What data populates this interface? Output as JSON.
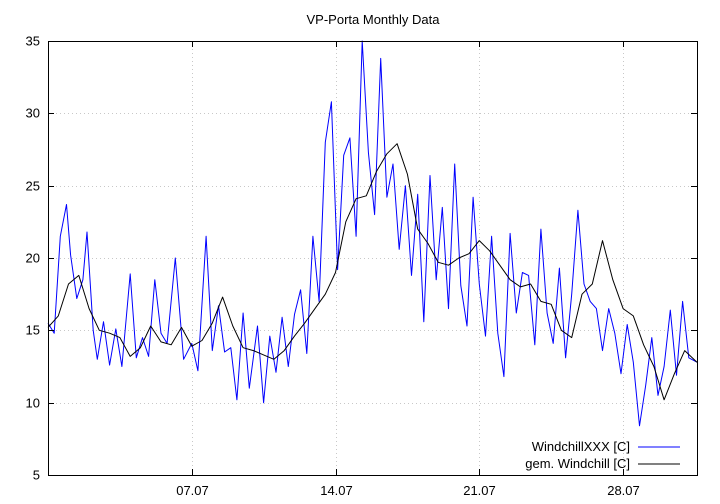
{
  "chart_data": {
    "type": "line",
    "title": "VP-Porta Monthly Data",
    "xlabel": "",
    "ylabel": "",
    "xlim": [
      0,
      31.6
    ],
    "ylim": [
      5,
      35
    ],
    "yticks": [
      5,
      10,
      15,
      20,
      25,
      30,
      35
    ],
    "xticks": [
      {
        "value": 7,
        "label": "07.07"
      },
      {
        "value": 14,
        "label": "14.07"
      },
      {
        "value": 21,
        "label": "21.07"
      },
      {
        "value": 28,
        "label": "28.07"
      }
    ],
    "grid": true,
    "legend_position": "bottom-right",
    "series": [
      {
        "name": "WindchillXXX [C]",
        "color": "#0000ff",
        "x": [
          0.0,
          0.3,
          0.6,
          0.9,
          1.1,
          1.4,
          1.7,
          1.9,
          2.2,
          2.4,
          2.7,
          3.0,
          3.3,
          3.6,
          4.0,
          4.3,
          4.6,
          4.9,
          5.2,
          5.5,
          5.8,
          6.2,
          6.6,
          7.0,
          7.3,
          7.7,
          8.0,
          8.3,
          8.6,
          8.9,
          9.2,
          9.5,
          9.8,
          10.2,
          10.5,
          10.8,
          11.1,
          11.4,
          11.7,
          12.0,
          12.3,
          12.6,
          12.9,
          13.2,
          13.5,
          13.8,
          14.1,
          14.4,
          14.7,
          15.0,
          15.3,
          15.6,
          15.9,
          16.2,
          16.5,
          16.8,
          17.1,
          17.4,
          17.7,
          18.0,
          18.3,
          18.6,
          18.9,
          19.2,
          19.5,
          19.8,
          20.1,
          20.4,
          20.7,
          21.0,
          21.3,
          21.6,
          21.9,
          22.2,
          22.5,
          22.8,
          23.1,
          23.4,
          23.7,
          24.0,
          24.3,
          24.6,
          24.9,
          25.2,
          25.5,
          25.8,
          26.1,
          26.4,
          26.7,
          27.0,
          27.3,
          27.6,
          27.9,
          28.2,
          28.5,
          28.8,
          29.1,
          29.4,
          29.7,
          30.0,
          30.3,
          30.6,
          30.9,
          31.2,
          31.6
        ],
        "y": [
          15.5,
          14.8,
          21.5,
          23.7,
          20.2,
          17.2,
          18.5,
          21.8,
          15.0,
          13.0,
          15.6,
          12.6,
          15.1,
          12.5,
          18.9,
          13.1,
          14.5,
          13.2,
          18.5,
          14.8,
          14.1,
          20.0,
          13.0,
          14.1,
          12.2,
          21.5,
          13.6,
          16.7,
          13.5,
          13.8,
          10.2,
          16.2,
          11.0,
          15.3,
          10.0,
          14.6,
          12.1,
          15.9,
          12.5,
          16.1,
          17.8,
          13.4,
          21.5,
          17.0,
          28.0,
          30.8,
          19.2,
          27.1,
          28.3,
          21.5,
          35.0,
          27.3,
          23.0,
          33.8,
          24.2,
          26.5,
          20.6,
          25.0,
          18.8,
          24.4,
          15.6,
          25.7,
          18.5,
          23.5,
          16.5,
          26.5,
          18.1,
          15.3,
          24.2,
          18.2,
          14.6,
          21.5,
          14.8,
          11.8,
          21.7,
          16.2,
          19.0,
          18.8,
          14.0,
          22.0,
          16.2,
          14.1,
          19.3,
          13.1,
          17.5,
          23.3,
          18.2,
          17.0,
          16.5,
          13.6,
          16.5,
          14.8,
          12.0,
          15.4,
          12.8,
          8.4,
          11.2,
          14.5,
          10.5,
          12.5,
          16.4,
          11.9,
          17.0,
          13.1,
          12.8
        ]
      },
      {
        "name": "gem. Windchill [C]",
        "color": "#000000",
        "x": [
          0.0,
          0.5,
          1.0,
          1.5,
          2.0,
          2.5,
          3.0,
          3.5,
          4.0,
          4.5,
          5.0,
          5.5,
          6.0,
          6.5,
          7.0,
          7.5,
          8.0,
          8.5,
          9.0,
          9.5,
          10.0,
          10.5,
          11.0,
          11.5,
          12.0,
          12.5,
          13.0,
          13.5,
          14.0,
          14.5,
          15.0,
          15.5,
          16.0,
          16.5,
          17.0,
          17.5,
          18.0,
          18.5,
          19.0,
          19.5,
          20.0,
          20.5,
          21.0,
          21.5,
          22.0,
          22.5,
          23.0,
          23.5,
          24.0,
          24.5,
          25.0,
          25.5,
          26.0,
          26.5,
          27.0,
          27.5,
          28.0,
          28.5,
          29.0,
          29.5,
          30.0,
          30.5,
          31.0,
          31.6
        ],
        "y": [
          15.2,
          16.0,
          18.2,
          18.8,
          16.5,
          15.0,
          14.8,
          14.5,
          13.2,
          13.8,
          15.3,
          14.2,
          14.0,
          15.2,
          13.9,
          14.3,
          15.5,
          17.3,
          15.3,
          13.8,
          13.6,
          13.3,
          13.0,
          13.6,
          14.6,
          15.5,
          16.5,
          17.5,
          19.0,
          22.5,
          24.1,
          24.3,
          26.0,
          27.2,
          27.9,
          25.8,
          22.0,
          21.0,
          19.7,
          19.5,
          20.0,
          20.3,
          21.2,
          20.5,
          19.5,
          18.5,
          18.0,
          18.2,
          17.0,
          16.8,
          15.0,
          14.5,
          17.5,
          18.2,
          21.2,
          18.5,
          16.5,
          16.0,
          14.0,
          12.5,
          10.2,
          12.0,
          13.6,
          12.8
        ]
      }
    ]
  }
}
